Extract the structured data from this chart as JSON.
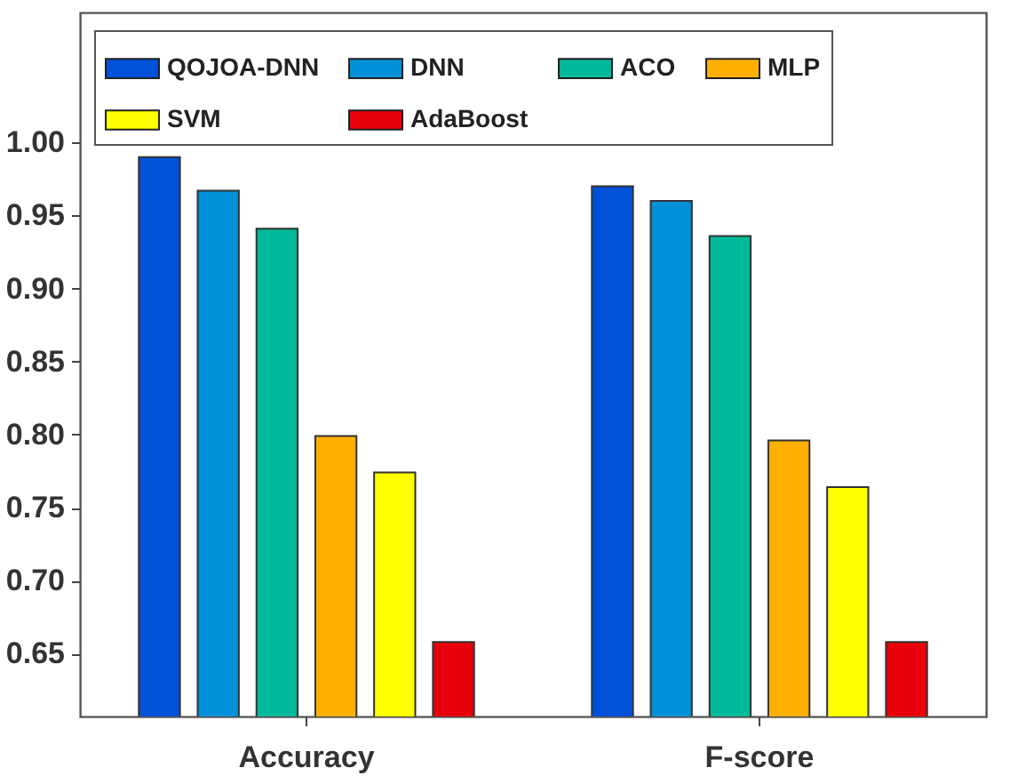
{
  "chart_data": {
    "type": "bar",
    "categories": [
      "Accuracy",
      "F-score"
    ],
    "series": [
      {
        "name": "QOJOA-DNN",
        "color": "#0051d8",
        "values": [
          0.99,
          0.97
        ]
      },
      {
        "name": "DNN",
        "color": "#0090d8",
        "values": [
          0.967,
          0.96
        ]
      },
      {
        "name": "ACO",
        "color": "#00b89a",
        "values": [
          0.941,
          0.936
        ]
      },
      {
        "name": "MLP",
        "color": "#ffaf00",
        "values": [
          0.799,
          0.796
        ]
      },
      {
        "name": "SVM",
        "color": "#ffff00",
        "values": [
          0.774,
          0.764
        ]
      },
      {
        "name": "AdaBoost",
        "color": "#e8000b",
        "values": [
          0.658,
          0.658
        ]
      }
    ],
    "ylim": [
      0.607,
      1.089
    ],
    "yticks": [
      0.65,
      {
        "value": 0.7,
        "label": "0.70"
      },
      0.75,
      {
        "value": 0.8,
        "label": "0.80"
      },
      0.85,
      {
        "value": 0.9,
        "label": "0.90"
      },
      0.95,
      {
        "value": 1,
        "label": "1.00"
      }
    ],
    "grid": false,
    "legend": "top"
  }
}
